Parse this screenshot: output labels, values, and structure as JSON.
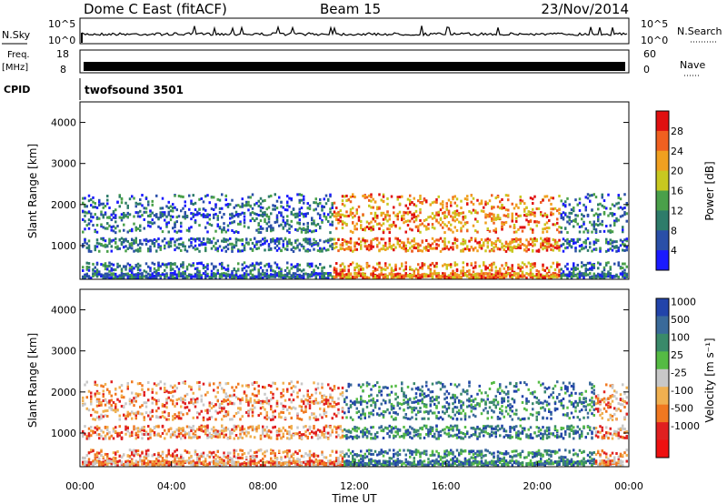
{
  "header": {
    "station": "Dome C East (fitACF)",
    "beam": "Beam 15",
    "date": "23/Nov/2014"
  },
  "left_labels": {
    "nsky": "N.Sky",
    "freq": "Freq.",
    "freq_unit": "[MHz]",
    "cpid": "CPID"
  },
  "right_labels": {
    "nsearch": "N.Search",
    "nave": "Nave"
  },
  "nsky_ticks": {
    "top": "10^5",
    "bottom": "10^0"
  },
  "freq_ticks": [
    "18",
    "8"
  ],
  "nave_ticks": [
    "60",
    "0"
  ],
  "cpid_text": "twofsound 3501",
  "colors": {
    "line": "#000000"
  },
  "chart_data": [
    {
      "type": "heatmap",
      "name": "power",
      "xlabel": "",
      "ylabel": "Slant Range [km]",
      "xlim": [
        0,
        24
      ],
      "ylim": [
        180,
        4500
      ],
      "yticks": [
        "1000",
        "2000",
        "3000",
        "4000"
      ],
      "colorbar": {
        "label": "Power [dB]",
        "ticks": [
          "4",
          "8",
          "12",
          "16",
          "20",
          "24",
          "28"
        ],
        "colors": [
          "#1a1aff",
          "#2a4fa8",
          "#2e7c6a",
          "#4aa04a",
          "#c8c820",
          "#f0a020",
          "#f06020",
          "#e01010"
        ]
      }
    },
    {
      "type": "heatmap",
      "name": "velocity",
      "xlabel": "Time UT",
      "ylabel": "Slant Range [km]",
      "xlim": [
        0,
        24
      ],
      "ylim": [
        180,
        4500
      ],
      "yticks": [
        "1000",
        "2000",
        "3000",
        "4000"
      ],
      "xticks": [
        "00:00",
        "04:00",
        "08:00",
        "12:00",
        "16:00",
        "20:00",
        "00:00"
      ],
      "colorbar": {
        "label": "Velocity [m s⁻¹]",
        "ticks": [
          "1000",
          "500",
          "100",
          "25",
          "-25",
          "-100",
          "-500",
          "-1000"
        ],
        "colors": [
          "#2244aa",
          "#3a6a9a",
          "#3a8a6a",
          "#55bb44",
          "#c8c8c8",
          "#f0b050",
          "#f07820",
          "#e02020",
          "#ee1010"
        ]
      }
    }
  ]
}
